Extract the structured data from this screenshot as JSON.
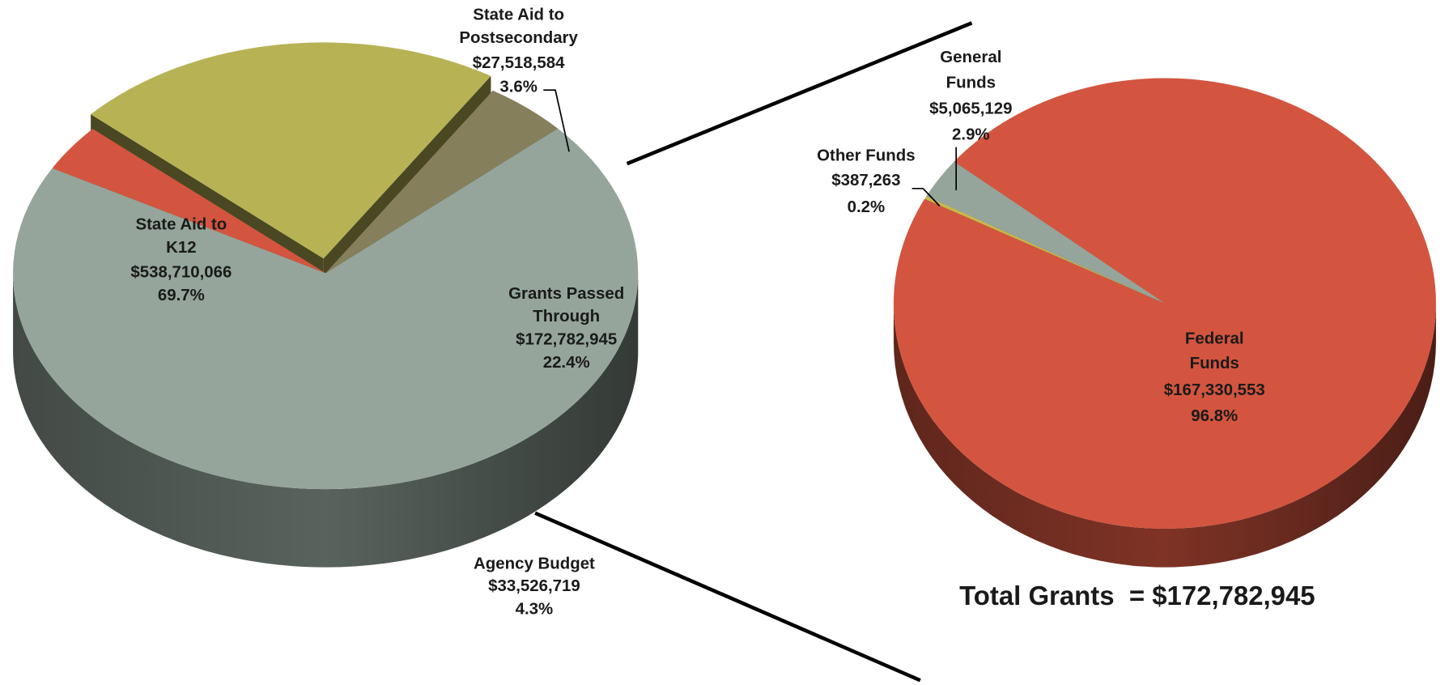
{
  "chart_data": [
    {
      "type": "pie",
      "categories": [
        [
          "State Aid to",
          "K12"
        ],
        [
          "State Aid to",
          "Postsecondary"
        ],
        [
          "Grants Passed",
          "Through"
        ],
        [
          "Agency Budget"
        ]
      ],
      "values": [
        538710066,
        27518584,
        172782945,
        33526719
      ],
      "value_labels": [
        "$538,710,066",
        "$27,518,584",
        "$172,782,945",
        "$33,526,719"
      ],
      "percents": [
        69.7,
        3.6,
        22.4,
        4.3
      ],
      "percent_labels": [
        "69.7%",
        "3.6%",
        "22.4%",
        "4.3%"
      ],
      "colors": [
        "#95a59b",
        "#d3553f",
        "#b7b355",
        "#857f5c"
      ],
      "explode": 2
    },
    {
      "type": "pie",
      "title": "Total Grants  = $172,782,945",
      "categories": [
        [
          "Federal",
          "Funds"
        ],
        [
          "Other Funds"
        ],
        [
          "General",
          "Funds"
        ]
      ],
      "values": [
        167330553,
        387263,
        5065129
      ],
      "value_labels": [
        "$167,330,553",
        "$387,263",
        "$5,065,129"
      ],
      "percents": [
        96.8,
        0.2,
        2.9
      ],
      "percent_labels": [
        "96.8%",
        "0.2%",
        "2.9%"
      ],
      "colors": [
        "#d3553f",
        "#c9b84a",
        "#95a59b"
      ]
    }
  ]
}
